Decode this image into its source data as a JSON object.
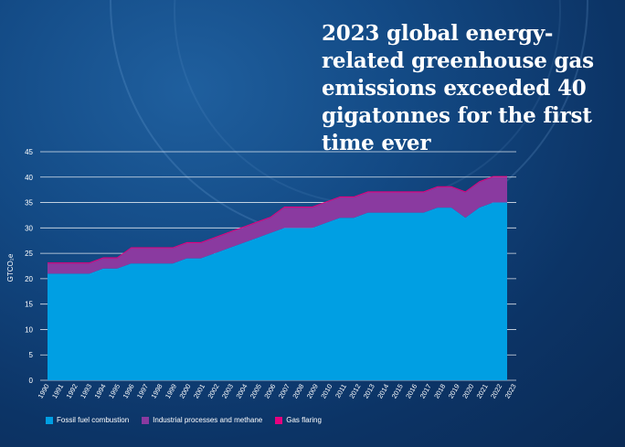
{
  "title": "2023 global energy-related greenhouse gas emissions exceeded 40 gigatonnes for the first time ever",
  "chart_data": {
    "type": "area",
    "ylabel": "GTCO₂e",
    "ylim": [
      0,
      45
    ],
    "yticks": [
      0,
      5,
      10,
      15,
      20,
      25,
      30,
      35,
      40,
      45
    ],
    "grid": true,
    "legend_position": "bottom-left",
    "categories": [
      "1990",
      "1991",
      "1992",
      "1993",
      "1994",
      "1995",
      "1996",
      "1997",
      "1998",
      "1999",
      "2000",
      "2001",
      "2002",
      "2003",
      "2004",
      "2005",
      "2006",
      "2007",
      "2008",
      "2009",
      "2010",
      "2011",
      "2012",
      "2013",
      "2014",
      "2015",
      "2016",
      "2017",
      "2018",
      "2019",
      "2020",
      "2021",
      "2022",
      "2023"
    ],
    "series": [
      {
        "name": "Fossil fuel combustion",
        "color": "#009fe3",
        "values": [
          21,
          21,
          21,
          21,
          22,
          22,
          23,
          23,
          23,
          23,
          24,
          24,
          25,
          26,
          27,
          28,
          29,
          30,
          30,
          30,
          31,
          32,
          32,
          33,
          33,
          33,
          33,
          33,
          34,
          34,
          32,
          34,
          35,
          35
        ]
      },
      {
        "name": "Industrial processes and methane",
        "color": "#8a3aa0",
        "values": [
          2,
          2,
          2,
          2,
          2,
          2,
          3,
          3,
          3,
          3,
          3,
          3,
          3,
          3,
          3,
          3,
          3,
          4,
          4,
          4,
          4,
          4,
          4,
          4,
          4,
          4,
          4,
          4,
          4,
          4,
          5,
          5,
          5,
          5
        ]
      },
      {
        "name": "Gas flaring",
        "color": "#e6007e",
        "values": [
          0.2,
          0.2,
          0.2,
          0.2,
          0.2,
          0.2,
          0.2,
          0.2,
          0.2,
          0.2,
          0.2,
          0.2,
          0.2,
          0.2,
          0.2,
          0.2,
          0.2,
          0.2,
          0.2,
          0.2,
          0.2,
          0.2,
          0.2,
          0.2,
          0.2,
          0.2,
          0.2,
          0.2,
          0.2,
          0.2,
          0.2,
          0.2,
          0.2,
          0.2
        ]
      }
    ]
  }
}
